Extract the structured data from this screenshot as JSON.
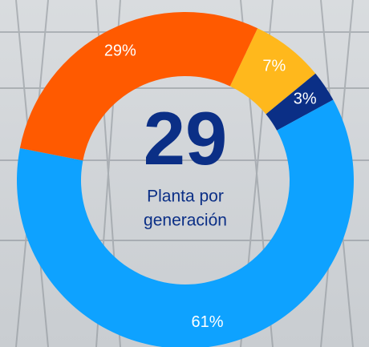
{
  "chart_data": {
    "type": "donut",
    "values": [
      7,
      3,
      61,
      29
    ],
    "value_labels": [
      "7%",
      "3%",
      "61%",
      "29%"
    ],
    "colors": [
      "#ffb81c",
      "#0b2f86",
      "#0ea2ff",
      "#ff5a00"
    ],
    "center_value": "29",
    "center_label": [
      "Planta por",
      "generación"
    ]
  }
}
